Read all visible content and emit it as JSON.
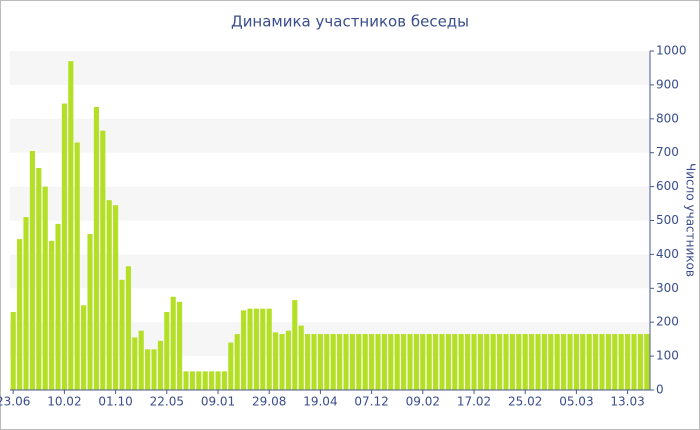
{
  "chart_data": {
    "type": "bar",
    "title": "Динамика участников беседы",
    "y_label": "Число участников",
    "categories": [
      "23.06",
      null,
      null,
      null,
      null,
      null,
      null,
      null,
      "10.02",
      null,
      null,
      null,
      null,
      null,
      null,
      null,
      "01.10",
      null,
      null,
      null,
      null,
      null,
      null,
      null,
      "22.05",
      null,
      null,
      null,
      null,
      null,
      null,
      null,
      "09.01",
      null,
      null,
      null,
      null,
      null,
      null,
      null,
      "29.08",
      null,
      null,
      null,
      null,
      null,
      null,
      null,
      "19.04",
      null,
      null,
      null,
      null,
      null,
      null,
      null,
      "07.12",
      null,
      null,
      null,
      null,
      null,
      null,
      null,
      "09.02",
      null,
      null,
      null,
      null,
      null,
      null,
      null,
      "17.02",
      null,
      null,
      null,
      null,
      null,
      null,
      null,
      "25.02",
      null,
      null,
      null,
      null,
      null,
      null,
      null,
      "05.03",
      null,
      null,
      null,
      null,
      null,
      null,
      null,
      "13.03",
      null,
      null,
      null
    ],
    "values": [
      230,
      445,
      510,
      705,
      655,
      600,
      440,
      490,
      845,
      970,
      730,
      250,
      460,
      835,
      765,
      560,
      545,
      325,
      365,
      155,
      175,
      120,
      120,
      145,
      230,
      275,
      260,
      55,
      55,
      55,
      55,
      55,
      55,
      55,
      140,
      165,
      235,
      240,
      240,
      240,
      240,
      170,
      165,
      175,
      265,
      190,
      165,
      165,
      165,
      165,
      165,
      165,
      165,
      165,
      165,
      165,
      165,
      165,
      165,
      165,
      165,
      165,
      165,
      165,
      165,
      165,
      165,
      165,
      165,
      165,
      165,
      165,
      165,
      165,
      165,
      165,
      165,
      165,
      165,
      165,
      165,
      165,
      165,
      165,
      165,
      165,
      165,
      165,
      165,
      165,
      165,
      165,
      165,
      165,
      165,
      165,
      165,
      165,
      165,
      165
    ],
    "color": "#b3df24",
    "ylim": [
      0,
      1000
    ],
    "yticks": [
      0,
      100,
      200,
      300,
      400,
      500,
      600,
      700,
      800,
      900,
      1000
    ],
    "grid": true
  }
}
